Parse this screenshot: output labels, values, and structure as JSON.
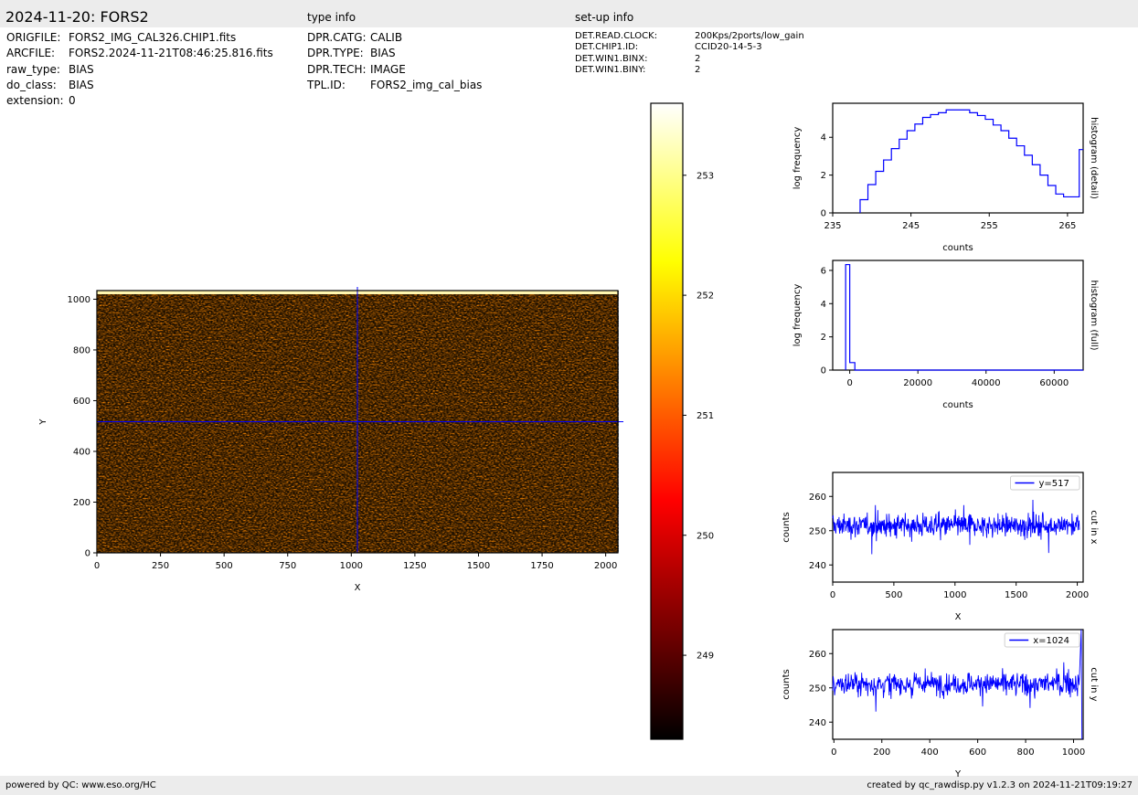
{
  "header": {
    "title": "2024-11-20: FORS2",
    "type_info_title": "type info",
    "setup_info_title": "set-up info"
  },
  "file_info": [
    {
      "key": "ORIGFILE:",
      "value": "FORS2_IMG_CAL326.CHIP1.fits"
    },
    {
      "key": "ARCFILE:",
      "value": "FORS2.2024-11-21T08:46:25.816.fits"
    },
    {
      "key": "raw_type:",
      "value": "BIAS"
    },
    {
      "key": "do_class:",
      "value": "BIAS"
    },
    {
      "key": "extension:",
      "value": "0"
    }
  ],
  "type_info": [
    {
      "key": "DPR.CATG:",
      "value": "CALIB"
    },
    {
      "key": "DPR.TYPE:",
      "value": "BIAS"
    },
    {
      "key": "DPR.TECH:",
      "value": "IMAGE"
    },
    {
      "key": "TPL.ID:",
      "value": "FORS2_img_cal_bias"
    }
  ],
  "setup_info": [
    {
      "key": "DET.READ.CLOCK:",
      "value": "200Kps/2ports/low_gain"
    },
    {
      "key": "DET.CHIP1.ID:",
      "value": "CCID20-14-5-3"
    },
    {
      "key": "DET.WIN1.BINX:",
      "value": "2"
    },
    {
      "key": "DET.WIN1.BINY:",
      "value": "2"
    }
  ],
  "footer": {
    "left": "powered by QC: www.eso.org/HC",
    "right": "created by qc_rawdisp.py v1.2.3 on 2024-11-21T09:19:27"
  },
  "chart_data": [
    {
      "type": "heatmap",
      "xlabel": "X",
      "ylabel": "Y",
      "xlim": [
        0,
        2048
      ],
      "ylim": [
        0,
        1034
      ],
      "x_ticks": [
        0,
        250,
        500,
        750,
        1000,
        1250,
        1500,
        1750,
        2000
      ],
      "y_ticks": [
        0,
        200,
        400,
        600,
        800,
        1000
      ],
      "crosshair": {
        "x": 1024,
        "y": 517
      },
      "colormap": "hot",
      "color_range": [
        248.3,
        253.6
      ],
      "colorbar_ticks": [
        249,
        250,
        251,
        252,
        253
      ],
      "crosshair_color": "#0000ff"
    },
    {
      "type": "line",
      "name": "histogram (detail)",
      "xlabel": "counts",
      "ylabel": "log frequency",
      "side_label": "histogram (detail)",
      "xlim": [
        235,
        267
      ],
      "ylim": [
        0,
        5.8
      ],
      "x_ticks": [
        235,
        245,
        255,
        265
      ],
      "y_ticks": [
        0,
        2,
        4
      ],
      "step_edges": [
        238.5,
        239.5,
        240.5,
        241.5,
        242.5,
        243.5,
        244.5,
        245.5,
        246.5,
        247.5,
        248.5,
        249.5,
        250.5,
        251.5,
        252.5,
        253.5,
        254.5,
        255.5,
        256.5,
        257.5,
        258.5,
        259.5,
        260.5,
        261.5,
        262.5,
        263.5,
        264.5,
        266.5,
        267
      ],
      "values": [
        0.7,
        1.5,
        2.2,
        2.8,
        3.4,
        3.9,
        4.35,
        4.7,
        5.05,
        5.2,
        5.3,
        5.45,
        5.45,
        5.45,
        5.3,
        5.15,
        4.95,
        4.65,
        4.35,
        3.95,
        3.55,
        3.05,
        2.55,
        2.0,
        1.45,
        1.0,
        0.85,
        3.35
      ],
      "color": "#0000ff"
    },
    {
      "type": "line",
      "name": "histogram (full)",
      "xlabel": "counts",
      "ylabel": "log frequency",
      "side_label": "histogram (full)",
      "xlim": [
        -5000,
        68500
      ],
      "ylim": [
        0,
        6.6
      ],
      "x_ticks": [
        0,
        20000,
        40000,
        60000
      ],
      "y_ticks": [
        0,
        2,
        4,
        6
      ],
      "step_edges": [
        -1200,
        0,
        1500,
        68500
      ],
      "values": [
        6.35,
        0.45,
        0
      ],
      "color": "#0000ff"
    },
    {
      "type": "line",
      "xlabel": "X",
      "ylabel": "counts",
      "side_label": "cut in x",
      "legend": "y=517",
      "legend_position": "top-right",
      "xlim": [
        0,
        2048
      ],
      "ylim": [
        235,
        267
      ],
      "x_ticks": [
        0,
        500,
        1000,
        1500,
        2000
      ],
      "y_ticks": [
        240,
        250,
        260
      ],
      "mean": 251.5,
      "min": 242,
      "max": 259,
      "color": "#0000ff"
    },
    {
      "type": "line",
      "xlabel": "Y",
      "ylabel": "counts",
      "side_label": "cut in y",
      "legend": "x=1024",
      "legend_position": "top-right",
      "xlim": [
        -5,
        1040
      ],
      "ylim": [
        235,
        267
      ],
      "x_ticks": [
        0,
        200,
        400,
        600,
        800,
        1000
      ],
      "y_ticks": [
        240,
        250,
        260
      ],
      "mean": 251.2,
      "min": 235,
      "max": 267,
      "color": "#0000ff"
    }
  ]
}
